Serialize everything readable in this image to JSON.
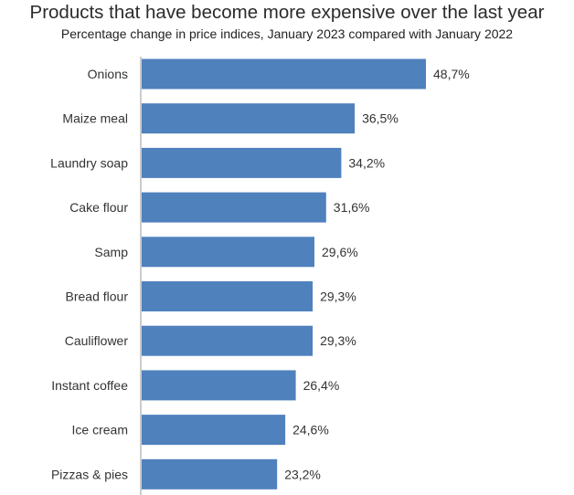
{
  "chart_data": {
    "type": "bar",
    "orientation": "horizontal",
    "title": "Products that have become more expensive over the last year",
    "subtitle": "Percentage change in price indices, January 2023 compared with January 2022",
    "xlabel": "",
    "ylabel": "",
    "categories": [
      "Onions",
      "Maize meal",
      "Laundry soap",
      "Cake flour",
      "Samp",
      "Bread flour",
      "Cauliflower",
      "Instant coffee",
      "Ice cream",
      "Pizzas & pies"
    ],
    "values": [
      48.7,
      36.5,
      34.2,
      31.6,
      29.6,
      29.3,
      29.3,
      26.4,
      24.6,
      23.2
    ],
    "value_labels": [
      "48,7%",
      "36,5%",
      "34,2%",
      "31,6%",
      "29,6%",
      "29,3%",
      "29,3%",
      "26,4%",
      "24,6%",
      "23,2%"
    ],
    "xlim": [
      0,
      48.7
    ],
    "grid": false,
    "legend": "none",
    "bar_color": "#4f81bd",
    "axis_color": "#999999"
  }
}
